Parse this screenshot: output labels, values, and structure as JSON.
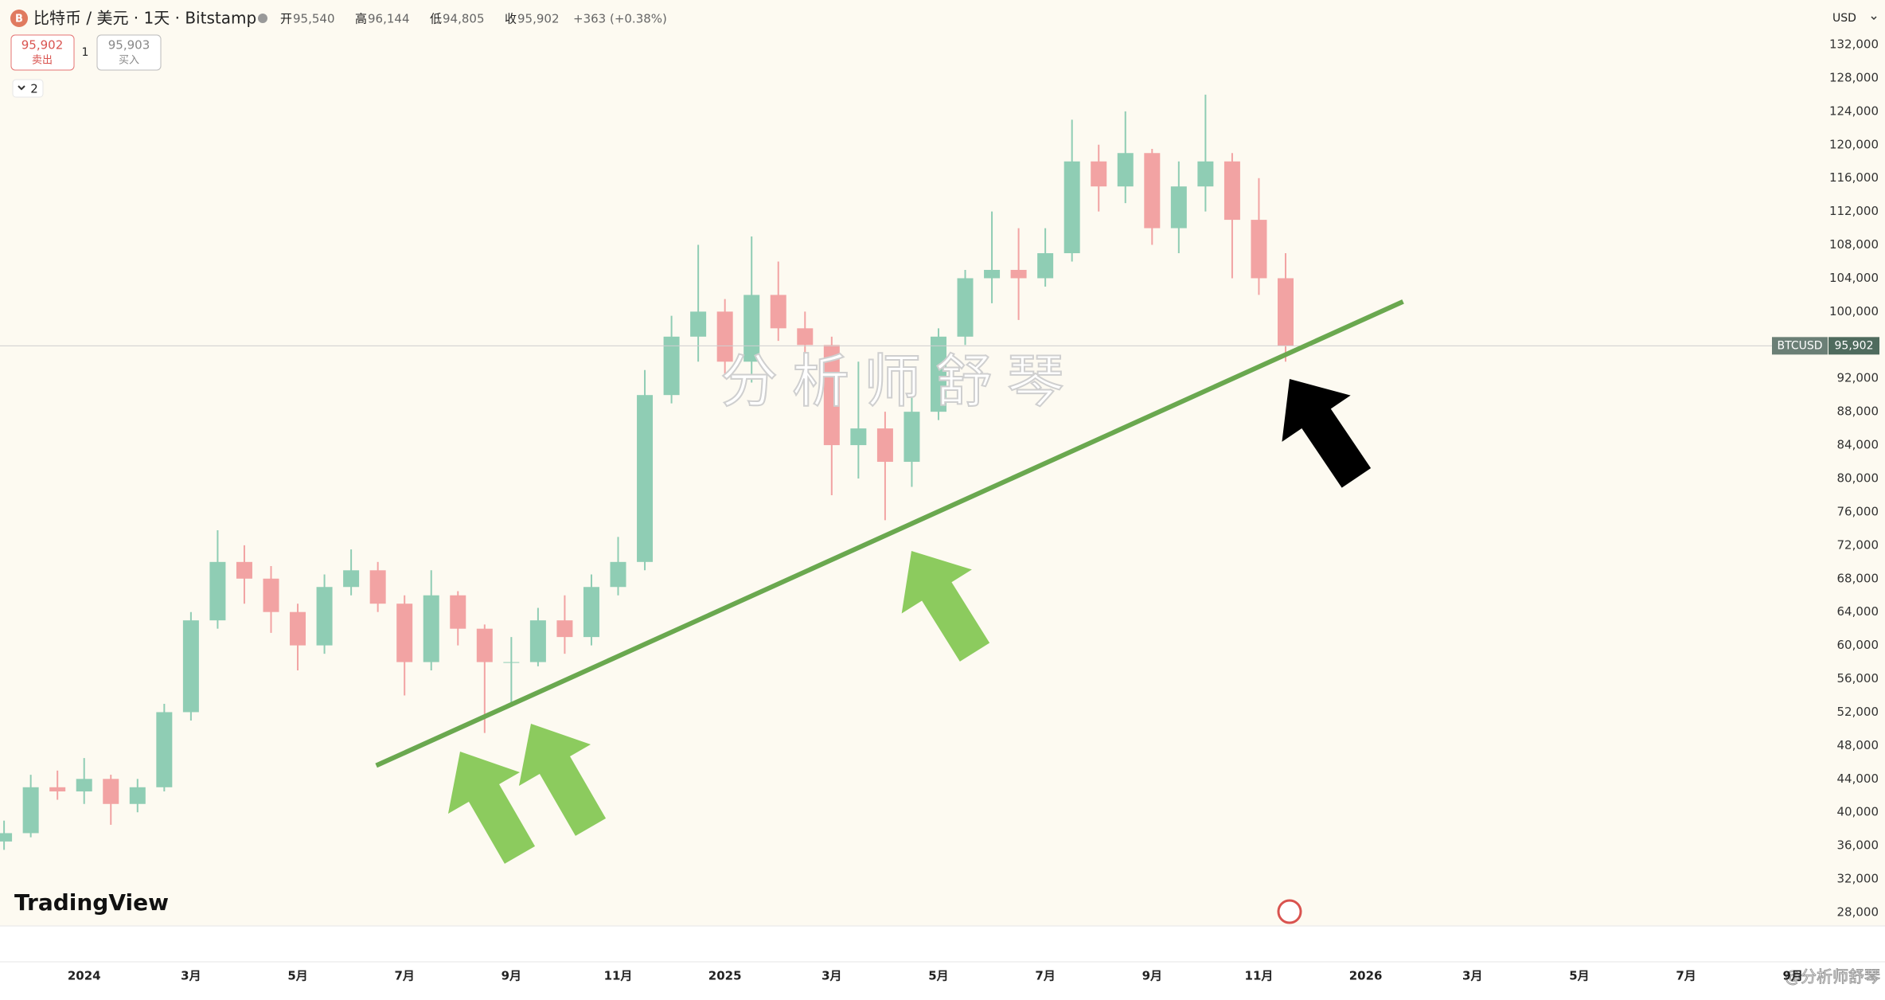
{
  "symbol_icon": "B",
  "header": {
    "symbol": "比特币 / 美元 · 1天 · Bitstamp",
    "ohlc": [
      {
        "label": "开",
        "value": "95,540"
      },
      {
        "label": "高",
        "value": "96,144"
      },
      {
        "label": "低",
        "value": "94,805"
      },
      {
        "label": "收",
        "value": "95,902"
      }
    ],
    "change": "+363 (+0.38%)"
  },
  "trade": {
    "sell_price": "95,902",
    "sell_label": "卖出",
    "quantity": "1",
    "buy_price": "95,903",
    "buy_label": "买入"
  },
  "indicators_count": "2",
  "currency": "USD",
  "price_tag": {
    "symbol": "BTCUSD",
    "price": "95,902"
  },
  "logo": "TradingView",
  "watermark": "分析师舒琴",
  "credit": "@分析师舒琴",
  "chart_data": {
    "type": "candlestick",
    "x": [
      -1.5,
      -1,
      -0.5,
      0,
      0.5,
      1,
      1.5,
      2,
      2.5,
      3,
      3.5,
      4,
      4.5,
      5,
      5.5,
      6,
      6.5,
      7,
      7.5,
      8,
      8.5,
      9,
      9.5,
      10,
      10.5,
      11,
      11.5,
      12,
      12.5,
      13,
      13.5,
      14,
      14.5,
      15,
      15.5,
      16,
      16.5,
      17,
      17.5,
      18,
      18.5,
      19,
      19.5,
      20,
      20.5,
      21,
      21.5,
      22,
      22.5
    ],
    "open": [
      36500,
      37500,
      43000,
      42500,
      44000,
      41000,
      43000,
      52000,
      63000,
      70000,
      68000,
      64000,
      60000,
      67000,
      69000,
      65000,
      58000,
      66000,
      62000,
      58000,
      58000,
      63000,
      61000,
      67000,
      70000,
      90000,
      97000,
      100000,
      94000,
      102000,
      98000,
      96000,
      84000,
      86000,
      82000,
      88000,
      97000,
      104000,
      105000,
      104000,
      107000,
      118000,
      115000,
      119000,
      110000,
      115000,
      118000,
      111000,
      104000
    ],
    "high": [
      39000,
      44500,
      45000,
      46500,
      44500,
      44000,
      53000,
      64000,
      73800,
      72000,
      69500,
      65000,
      68500,
      71500,
      70000,
      66000,
      69000,
      66500,
      62500,
      61000,
      64500,
      66000,
      68500,
      73000,
      93000,
      99500,
      108000,
      101500,
      109000,
      106000,
      100000,
      97000,
      94000,
      88000,
      93000,
      98000,
      105000,
      112000,
      110000,
      110000,
      123000,
      120000,
      124000,
      119500,
      118000,
      126000,
      119000,
      116000,
      107000
    ],
    "low": [
      35500,
      37000,
      41500,
      41000,
      38500,
      40000,
      42500,
      51000,
      62000,
      65000,
      61500,
      57000,
      59000,
      66000,
      64000,
      54000,
      57000,
      60000,
      49500,
      53000,
      57500,
      59000,
      60000,
      66000,
      69000,
      89000,
      94000,
      92000,
      91500,
      96500,
      94000,
      78000,
      80000,
      75000,
      79000,
      87000,
      96000,
      101000,
      99000,
      103000,
      106000,
      112000,
      113000,
      108000,
      107000,
      112000,
      104000,
      102000,
      94000
    ],
    "close": [
      37500,
      43000,
      42500,
      44000,
      41000,
      43000,
      52000,
      63000,
      70000,
      68000,
      64000,
      60000,
      67000,
      69000,
      65000,
      58000,
      66000,
      62000,
      58000,
      58000,
      63000,
      61000,
      67000,
      70000,
      90000,
      97000,
      100000,
      94000,
      102000,
      98000,
      96000,
      84000,
      86000,
      82000,
      88000,
      97000,
      104000,
      105000,
      104000,
      107000,
      118000,
      115000,
      119000,
      110000,
      115000,
      118000,
      111000,
      104000,
      95902
    ],
    "up_color": "#8fcdb4",
    "down_color": "#f2a3a3",
    "xlim": [
      -1.576,
      32.533
    ],
    "xticks": [
      {
        "value": 0,
        "label": "2024"
      },
      {
        "value": 2,
        "label": "3月"
      },
      {
        "value": 4,
        "label": "5月"
      },
      {
        "value": 6,
        "label": "7月"
      },
      {
        "value": 8,
        "label": "9月"
      },
      {
        "value": 10,
        "label": "11月"
      },
      {
        "value": 12,
        "label": "2025"
      },
      {
        "value": 14,
        "label": "3月"
      },
      {
        "value": 16,
        "label": "5月"
      },
      {
        "value": 18,
        "label": "7月"
      },
      {
        "value": 20,
        "label": "9月"
      },
      {
        "value": 22,
        "label": "11月"
      },
      {
        "value": 24,
        "label": "2026"
      },
      {
        "value": 26,
        "label": "3月"
      },
      {
        "value": 28,
        "label": "5月"
      },
      {
        "value": 30,
        "label": "7月"
      },
      {
        "value": 32,
        "label": "9月"
      }
    ],
    "ylim": [
      28000,
      132000
    ],
    "yticks": [
      {
        "value": 28000,
        "label": "28,000"
      },
      {
        "value": 32000,
        "label": "32,000"
      },
      {
        "value": 36000,
        "label": "36,000"
      },
      {
        "value": 40000,
        "label": "40,000"
      },
      {
        "value": 44000,
        "label": "44,000"
      },
      {
        "value": 48000,
        "label": "48,000"
      },
      {
        "value": 52000,
        "label": "52,000"
      },
      {
        "value": 56000,
        "label": "56,000"
      },
      {
        "value": 60000,
        "label": "60,000"
      },
      {
        "value": 64000,
        "label": "64,000"
      },
      {
        "value": 68000,
        "label": "68,000"
      },
      {
        "value": 72000,
        "label": "72,000"
      },
      {
        "value": 76000,
        "label": "76,000"
      },
      {
        "value": 80000,
        "label": "80,000"
      },
      {
        "value": 84000,
        "label": "84,000"
      },
      {
        "value": 88000,
        "label": "88,000"
      },
      {
        "value": 92000,
        "label": "92,000"
      },
      {
        "value": 96000,
        "label": "96,000"
      },
      {
        "value": 100000,
        "label": "100,000"
      },
      {
        "value": 104000,
        "label": "104,000"
      },
      {
        "value": 108000,
        "label": "108,000"
      },
      {
        "value": 112000,
        "label": "112,000"
      },
      {
        "value": 116000,
        "label": "116,000"
      },
      {
        "value": 120000,
        "label": "120,000"
      },
      {
        "value": 124000,
        "label": "124,000"
      },
      {
        "value": 128000,
        "label": "128,000"
      },
      {
        "value": 132000,
        "label": "132,000"
      }
    ],
    "grid": false,
    "trendline": {
      "x": [
        5.47,
        24.7
      ],
      "y": [
        45600,
        101200
      ],
      "color": "#6aa84f"
    }
  }
}
